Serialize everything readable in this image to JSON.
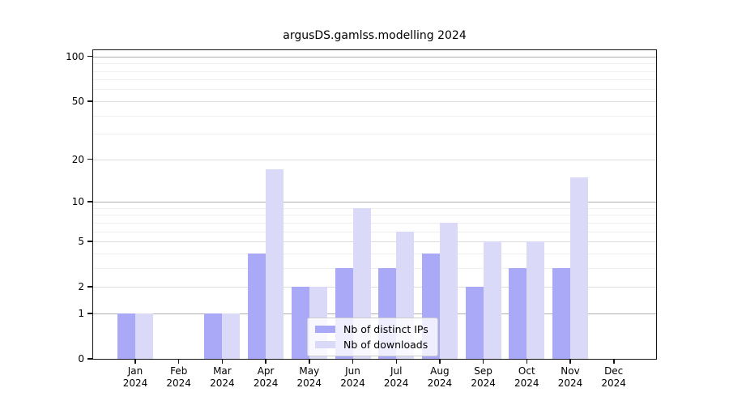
{
  "title": "argusDS.gamlss.modelling 2024",
  "chart_data": {
    "type": "bar",
    "categories": [
      "Jan",
      "Feb",
      "Mar",
      "Apr",
      "May",
      "Jun",
      "Jul",
      "Aug",
      "Sep",
      "Oct",
      "Nov",
      "Dec"
    ],
    "category_year": "2024",
    "series": [
      {
        "name": "Nb of distinct IPs",
        "color": "#a9a9f7",
        "values": [
          1,
          0,
          1,
          4,
          2,
          3,
          3,
          4,
          2,
          3,
          3,
          0
        ]
      },
      {
        "name": "Nb of downloads",
        "color": "#dadaf8",
        "values": [
          1,
          0,
          1,
          17,
          2,
          9,
          6,
          7,
          5,
          5,
          15,
          0
        ]
      }
    ],
    "y_axis": {
      "scale": "log1p",
      "tick_values": [
        0,
        1,
        2,
        5,
        10,
        20,
        50,
        100
      ],
      "tick_labels": [
        "0",
        "1",
        "2",
        "5",
        "10",
        "20",
        "50",
        "100"
      ],
      "decade_values": [
        1,
        10,
        100
      ],
      "mid_values": [
        2,
        5,
        20,
        50
      ],
      "minor_values": [
        3,
        4,
        6,
        7,
        8,
        9,
        30,
        40,
        60,
        70,
        80,
        90
      ],
      "ylim": [
        0,
        110
      ]
    },
    "xlabel": "",
    "ylabel": "",
    "grid": true,
    "legend_position": "lower-center"
  }
}
